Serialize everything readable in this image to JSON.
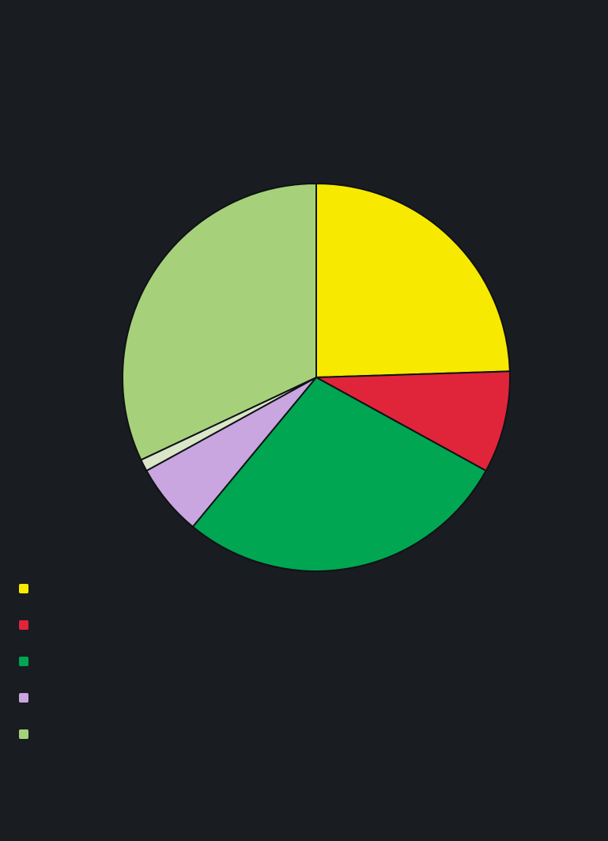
{
  "title_lines": [
    "",
    "",
    "",
    "",
    "",
    ""
  ],
  "chart_data": {
    "type": "pie",
    "title": "",
    "legend_position": "bottom",
    "colors": {
      "background": "#191c21",
      "title_text": "#e8e2d4",
      "subtitle_text": "#d8c7ad",
      "legend_text": "#c9d2dc"
    },
    "slices": [
      {
        "label": "",
        "value": 24.5,
        "color": "#f7ea00"
      },
      {
        "label": "",
        "value": 8.5,
        "color": "#e0243a"
      },
      {
        "label": "",
        "value": 28.0,
        "color": "#00a651"
      },
      {
        "label": "",
        "value": 6.0,
        "color": "#c9a6df"
      },
      {
        "label": "",
        "value": 1.0,
        "color": "#d9e6c8"
      },
      {
        "label": "",
        "value": 32.0,
        "color": "#a6d17a"
      }
    ]
  },
  "legend": [
    {
      "text": ""
    },
    {
      "text": ""
    },
    {
      "text": ""
    },
    {
      "text": ""
    },
    {
      "text": ""
    }
  ]
}
